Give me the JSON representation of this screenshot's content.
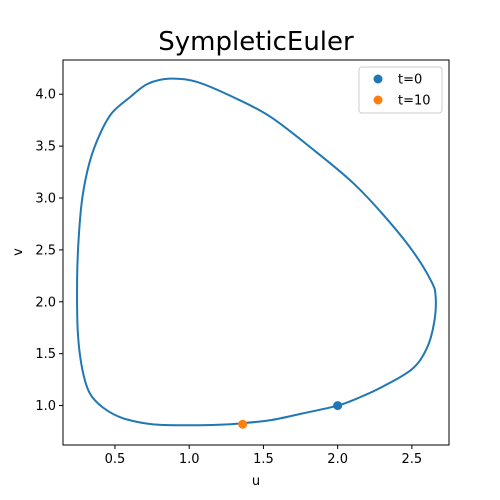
{
  "chart_data": {
    "type": "line",
    "title": "SympleticEuler",
    "xlabel": "u",
    "ylabel": "v",
    "xlim": [
      0.15,
      2.75
    ],
    "ylim": [
      0.62,
      4.33
    ],
    "xticks": [
      0.5,
      1.0,
      1.5,
      2.0,
      2.5
    ],
    "xtick_labels": [
      "0.5",
      "1.0",
      "1.5",
      "2.0",
      "2.5"
    ],
    "yticks": [
      1.0,
      1.5,
      2.0,
      2.5,
      3.0,
      3.5,
      4.0
    ],
    "ytick_labels": [
      "1.0",
      "1.5",
      "2.0",
      "2.5",
      "3.0",
      "3.5",
      "4.0"
    ],
    "grid": false,
    "legend_position": "top-right",
    "series": [
      {
        "color": "#1f77b4",
        "x": [
          2.0,
          2.15,
          2.3,
          2.5,
          2.6,
          2.65,
          2.66,
          2.63,
          2.5,
          2.3,
          2.1,
          1.85,
          1.55,
          1.3,
          1.05,
          0.87,
          0.72,
          0.6,
          0.48,
          0.4,
          0.33,
          0.28,
          0.255,
          0.245,
          0.25,
          0.28,
          0.33,
          0.42,
          0.55,
          0.75,
          1.0,
          1.2,
          1.36,
          1.55,
          1.75,
          2.0
        ],
        "y": [
          1.0,
          1.08,
          1.18,
          1.35,
          1.55,
          1.8,
          2.05,
          2.2,
          2.5,
          2.85,
          3.15,
          3.45,
          3.78,
          3.97,
          4.12,
          4.15,
          4.1,
          3.97,
          3.82,
          3.62,
          3.35,
          3.0,
          2.6,
          2.2,
          1.7,
          1.35,
          1.12,
          0.98,
          0.88,
          0.82,
          0.81,
          0.815,
          0.83,
          0.86,
          0.92,
          1.0
        ]
      }
    ],
    "points": [
      {
        "name": "t=0",
        "x": 2.0,
        "y": 1.0,
        "color": "#1f77b4"
      },
      {
        "name": "t=10",
        "x": 1.36,
        "y": 0.82,
        "color": "#ff7f0e"
      }
    ]
  }
}
